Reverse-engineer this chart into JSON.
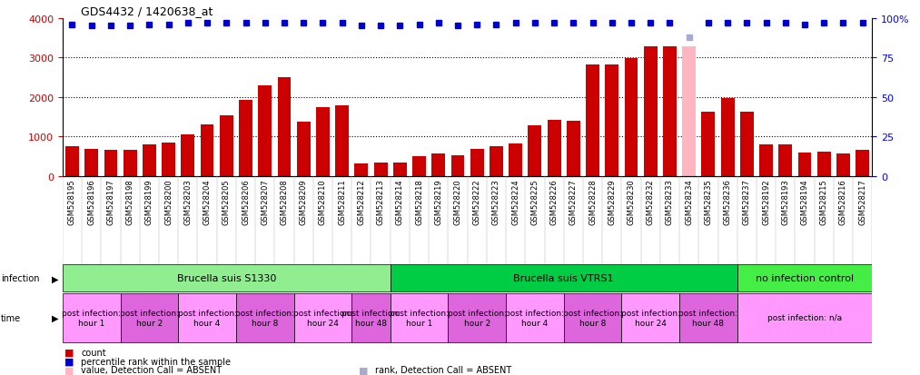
{
  "title": "GDS4432 / 1420638_at",
  "samples": [
    "GSM528195",
    "GSM528196",
    "GSM528197",
    "GSM528198",
    "GSM528199",
    "GSM528200",
    "GSM528203",
    "GSM528204",
    "GSM528205",
    "GSM528206",
    "GSM528207",
    "GSM528208",
    "GSM528209",
    "GSM528210",
    "GSM528211",
    "GSM528212",
    "GSM528213",
    "GSM528214",
    "GSM528218",
    "GSM528219",
    "GSM528220",
    "GSM528222",
    "GSM528223",
    "GSM528224",
    "GSM528225",
    "GSM528226",
    "GSM528227",
    "GSM528228",
    "GSM528229",
    "GSM528230",
    "GSM528232",
    "GSM528233",
    "GSM528234",
    "GSM528235",
    "GSM528236",
    "GSM528237",
    "GSM528192",
    "GSM528193",
    "GSM528194",
    "GSM528215",
    "GSM528216",
    "GSM528217"
  ],
  "counts": [
    760,
    680,
    650,
    660,
    800,
    830,
    1050,
    1310,
    1530,
    1920,
    2300,
    2500,
    1360,
    1730,
    1780,
    310,
    330,
    325,
    490,
    560,
    530,
    680,
    760,
    810,
    1270,
    1420,
    1390,
    2820,
    2830,
    2980,
    3270,
    3270,
    3280,
    1630,
    1970,
    1620,
    800,
    790,
    580,
    610,
    560,
    650
  ],
  "absent_indices": [
    32
  ],
  "pink_bar_color": "#FFB6C1",
  "red_bar_color": "#CC0000",
  "percentile_ranks_pct": [
    96,
    95,
    95,
    95,
    96,
    96,
    97,
    97,
    97,
    97,
    97,
    97,
    97,
    97,
    97,
    95,
    95,
    95,
    96,
    97,
    95,
    96,
    96,
    97,
    97,
    97,
    97,
    97,
    97,
    97,
    97,
    97,
    88,
    97,
    97,
    97,
    97,
    97,
    96,
    97,
    97,
    97
  ],
  "absent_rank_indices": [
    32
  ],
  "ylim_left": [
    0,
    4000
  ],
  "ylim_right": [
    0,
    100
  ],
  "yticks_left": [
    0,
    1000,
    2000,
    3000,
    4000
  ],
  "yticks_right": [
    0,
    25,
    50,
    75,
    100
  ],
  "right_ytick_labels": [
    "0",
    "25",
    "50",
    "75",
    "100%"
  ],
  "grid_lines": [
    1000,
    2000,
    3000
  ],
  "infection_groups": [
    {
      "label": "Brucella suis S1330",
      "start": 0,
      "end": 17,
      "color": "#90EE90"
    },
    {
      "label": "Brucella suis VTRS1",
      "start": 17,
      "end": 35,
      "color": "#00CC44"
    },
    {
      "label": "no infection control",
      "start": 35,
      "end": 42,
      "color": "#44EE44"
    }
  ],
  "time_groups_s1330": [
    {
      "label": "post infection:\nhour 1",
      "start": 0,
      "end": 3
    },
    {
      "label": "post infection:\nhour 2",
      "start": 3,
      "end": 6
    },
    {
      "label": "post infection:\nhour 4",
      "start": 6,
      "end": 9
    },
    {
      "label": "post infection:\nhour 8",
      "start": 9,
      "end": 12
    },
    {
      "label": "post infection:\nhour 24",
      "start": 12,
      "end": 15
    },
    {
      "label": "post infection:\nhour 48",
      "start": 15,
      "end": 17
    }
  ],
  "time_groups_vtrs1": [
    {
      "label": "post infection:\nhour 1",
      "start": 17,
      "end": 20
    },
    {
      "label": "post infection:\nhour 2",
      "start": 20,
      "end": 23
    },
    {
      "label": "post infection:\nhour 4",
      "start": 23,
      "end": 26
    },
    {
      "label": "post infection:\nhour 8",
      "start": 26,
      "end": 29
    },
    {
      "label": "post infection:\nhour 24",
      "start": 29,
      "end": 32
    },
    {
      "label": "post infection:\nhour 48",
      "start": 32,
      "end": 35
    }
  ],
  "time_group_noinf": {
    "label": "post infection: n/a",
    "start": 35,
    "end": 42
  },
  "time_color_light": "#FF99FF",
  "time_color_dark": "#DD66DD",
  "bg_color": "#FFFFFF",
  "xticklabel_bg": "#DDDDDD"
}
